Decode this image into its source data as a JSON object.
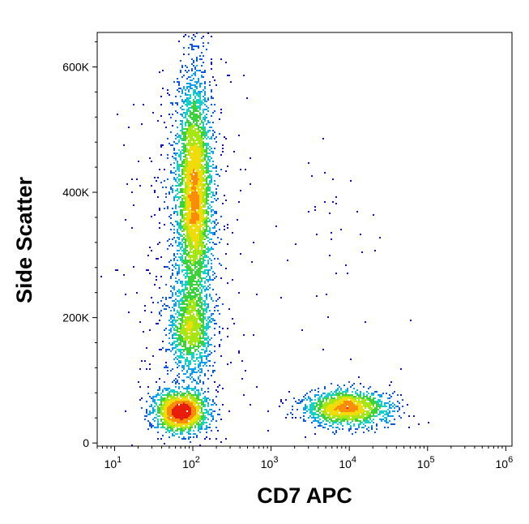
{
  "chart_data": {
    "type": "scatter",
    "xlabel": "CD7 APC",
    "ylabel": "Side Scatter",
    "xscale": "log",
    "yscale": "linear",
    "xlim": [
      6,
      1200000
    ],
    "ylim": [
      -5000,
      655000
    ],
    "x_ticks": [
      {
        "base": "10",
        "exp": "1",
        "value": 10
      },
      {
        "base": "10",
        "exp": "2",
        "value": 100
      },
      {
        "base": "10",
        "exp": "3",
        "value": 1000
      },
      {
        "base": "10",
        "exp": "4",
        "value": 10000
      },
      {
        "base": "10",
        "exp": "5",
        "value": 100000
      },
      {
        "base": "10",
        "exp": "6",
        "value": 1000000
      }
    ],
    "y_ticks": [
      {
        "label": "0",
        "value": 0
      },
      {
        "label": "200K",
        "value": 200000
      },
      {
        "label": "400K",
        "value": 400000
      },
      {
        "label": "600K",
        "value": 600000
      }
    ],
    "grid": false,
    "legend": "none",
    "colormap": [
      "#1010c8",
      "#0a56e6",
      "#0aa0f0",
      "#14d2c8",
      "#3cd23c",
      "#a6e614",
      "#f0dc0a",
      "#fa8c0a",
      "#e61e0a"
    ],
    "populations": [
      {
        "x_center": 105,
        "x_spread_decades": 0.11,
        "y_center": 400000,
        "y_spread": 90000,
        "count": 4200
      },
      {
        "x_center": 95,
        "x_spread_decades": 0.13,
        "y_center": 180000,
        "y_spread": 35000,
        "count": 1200
      },
      {
        "x_center": 70,
        "x_spread_decades": 0.17,
        "y_center": 50000,
        "y_spread": 16000,
        "count": 1800
      },
      {
        "x_center": 9000,
        "x_spread_decades": 0.28,
        "y_center": 55000,
        "y_spread": 14000,
        "count": 1700
      },
      {
        "x_center": 80,
        "x_spread_decades": 0.35,
        "y_center": 250000,
        "y_spread": 200000,
        "count": 700
      },
      {
        "x_center": 6000,
        "x_spread_decades": 0.35,
        "y_center": 330000,
        "y_spread": 90000,
        "count": 40
      }
    ]
  }
}
